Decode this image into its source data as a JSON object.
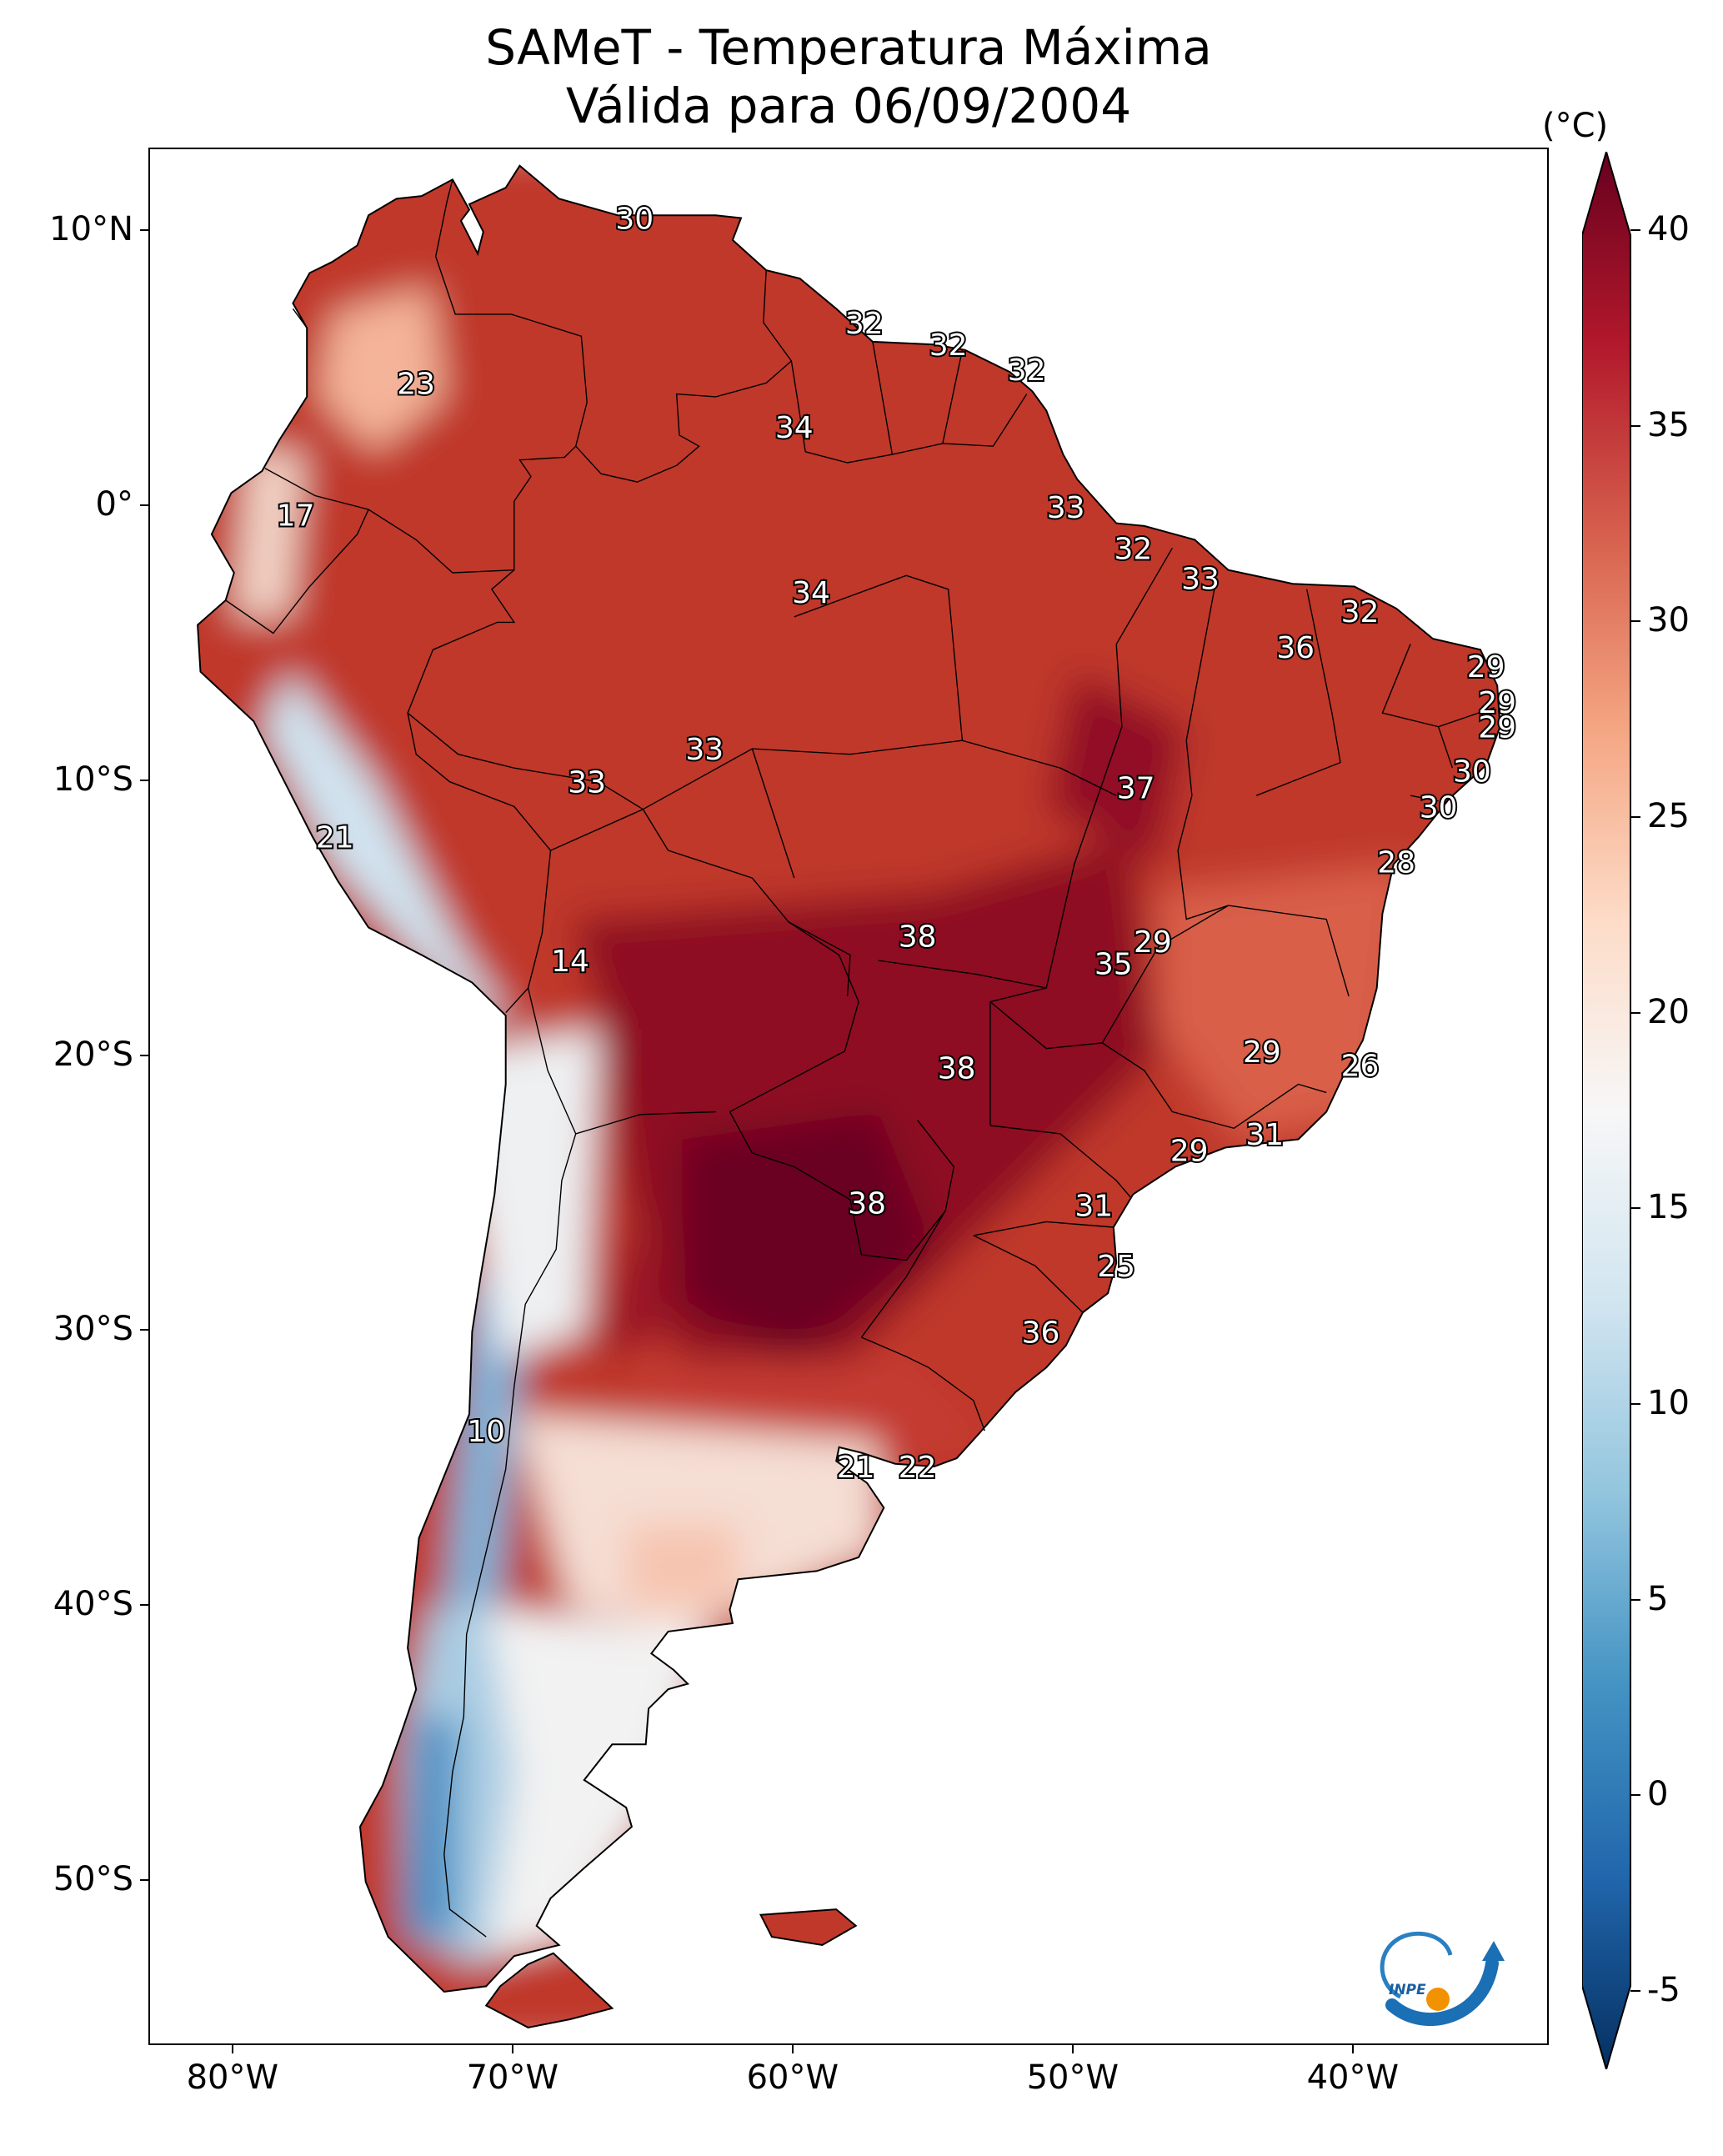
{
  "title": {
    "line1": "SAMeT - Temperatura Máxima",
    "line2": "Válida para 06/09/2004"
  },
  "map": {
    "lon_range": [
      -83,
      -33
    ],
    "lat_range": [
      -56,
      13
    ],
    "lat_ticks": [
      {
        "value": 10,
        "label": "10°N"
      },
      {
        "value": 0,
        "label": "0°"
      },
      {
        "value": -10,
        "label": "10°S"
      },
      {
        "value": -20,
        "label": "20°S"
      },
      {
        "value": -30,
        "label": "30°S"
      },
      {
        "value": -40,
        "label": "40°S"
      },
      {
        "value": -50,
        "label": "50°S"
      }
    ],
    "lon_ticks": [
      {
        "value": -80,
        "label": "80°W"
      },
      {
        "value": -70,
        "label": "70°W"
      },
      {
        "value": -60,
        "label": "60°W"
      },
      {
        "value": -50,
        "label": "50°W"
      },
      {
        "value": -40,
        "label": "40°W"
      }
    ],
    "station_labels": [
      {
        "text": "30",
        "lon": -65.7,
        "lat": 10.5
      },
      {
        "text": "23",
        "lon": -73.5,
        "lat": 4.5
      },
      {
        "text": "32",
        "lon": -57.5,
        "lat": 6.7
      },
      {
        "text": "32",
        "lon": -54.5,
        "lat": 5.9
      },
      {
        "text": "32",
        "lon": -51.7,
        "lat": 5.0
      },
      {
        "text": "34",
        "lon": -60.0,
        "lat": 2.9
      },
      {
        "text": "17",
        "lon": -77.8,
        "lat": -0.3
      },
      {
        "text": "33",
        "lon": -50.3,
        "lat": 0.0
      },
      {
        "text": "32",
        "lon": -47.9,
        "lat": -1.5
      },
      {
        "text": "33",
        "lon": -45.5,
        "lat": -2.6
      },
      {
        "text": "34",
        "lon": -59.4,
        "lat": -3.1
      },
      {
        "text": "32",
        "lon": -39.8,
        "lat": -3.8
      },
      {
        "text": "36",
        "lon": -42.1,
        "lat": -5.1
      },
      {
        "text": "29",
        "lon": -35.3,
        "lat": -5.8
      },
      {
        "text": "29",
        "lon": -34.9,
        "lat": -7.1
      },
      {
        "text": "29",
        "lon": -34.9,
        "lat": -8.0
      },
      {
        "text": "33",
        "lon": -63.2,
        "lat": -8.8
      },
      {
        "text": "30",
        "lon": -35.8,
        "lat": -9.6
      },
      {
        "text": "33",
        "lon": -67.4,
        "lat": -10.0
      },
      {
        "text": "37",
        "lon": -47.8,
        "lat": -10.2
      },
      {
        "text": "30",
        "lon": -37.0,
        "lat": -10.9
      },
      {
        "text": "21",
        "lon": -76.4,
        "lat": -12.0
      },
      {
        "text": "28",
        "lon": -38.5,
        "lat": -12.9
      },
      {
        "text": "38",
        "lon": -55.6,
        "lat": -15.6
      },
      {
        "text": "29",
        "lon": -47.2,
        "lat": -15.8
      },
      {
        "text": "35",
        "lon": -48.6,
        "lat": -16.6
      },
      {
        "text": "14",
        "lon": -68.0,
        "lat": -16.5
      },
      {
        "text": "29",
        "lon": -43.3,
        "lat": -19.8
      },
      {
        "text": "26",
        "lon": -39.8,
        "lat": -20.3
      },
      {
        "text": "38",
        "lon": -54.2,
        "lat": -20.4
      },
      {
        "text": "31",
        "lon": -43.2,
        "lat": -22.8
      },
      {
        "text": "29",
        "lon": -45.9,
        "lat": -23.4
      },
      {
        "text": "38",
        "lon": -57.4,
        "lat": -25.3
      },
      {
        "text": "31",
        "lon": -49.3,
        "lat": -25.4
      },
      {
        "text": "25",
        "lon": -48.5,
        "lat": -27.6
      },
      {
        "text": "36",
        "lon": -51.2,
        "lat": -30.0
      },
      {
        "text": "10",
        "lon": -71.0,
        "lat": -33.6
      },
      {
        "text": "21",
        "lon": -57.8,
        "lat": -34.9
      },
      {
        "text": "22",
        "lon": -55.6,
        "lat": -34.9
      }
    ]
  },
  "colorbar": {
    "unit": "(°C)",
    "min": -7,
    "max": 42,
    "ticks": [
      {
        "value": 40,
        "label": "40"
      },
      {
        "value": 35,
        "label": "35"
      },
      {
        "value": 30,
        "label": "30"
      },
      {
        "value": 25,
        "label": "25"
      },
      {
        "value": 20,
        "label": "20"
      },
      {
        "value": 15,
        "label": "15"
      },
      {
        "value": 10,
        "label": "10"
      },
      {
        "value": 5,
        "label": "5"
      },
      {
        "value": 0,
        "label": "0"
      },
      {
        "value": -5,
        "label": "-5"
      }
    ],
    "colors": [
      "#053061",
      "#2166ac",
      "#4393c3",
      "#92c5de",
      "#d1e5f0",
      "#f7f7f7",
      "#fddbc7",
      "#f4a582",
      "#d6604d",
      "#b2182b",
      "#67001f"
    ]
  },
  "logo": {
    "text": "INPE"
  }
}
